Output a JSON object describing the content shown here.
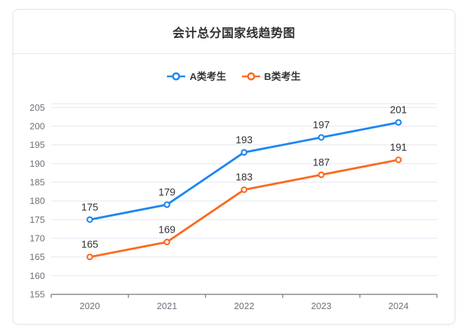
{
  "card": {
    "title": "会计总分国家线趋势图"
  },
  "chart_data": {
    "type": "line",
    "title": "会计总分国家线趋势图",
    "categories": [
      "2020",
      "2021",
      "2022",
      "2023",
      "2024"
    ],
    "series": [
      {
        "name": "A类考生",
        "color": "#1e86f0",
        "values": [
          175,
          179,
          193,
          197,
          201
        ]
      },
      {
        "name": "B类考生",
        "color": "#fb6a21",
        "values": [
          165,
          169,
          183,
          187,
          191
        ]
      }
    ],
    "yticks": [
      155,
      160,
      165,
      170,
      175,
      180,
      185,
      190,
      195,
      200,
      205
    ],
    "ylim": [
      155,
      206
    ],
    "grid": true,
    "legend_position": "top",
    "colors": {
      "axis_label": "#6e7079",
      "axis_line": "#6e7079",
      "grid_line": "#e0e6f1",
      "data_label": "#333333"
    }
  }
}
